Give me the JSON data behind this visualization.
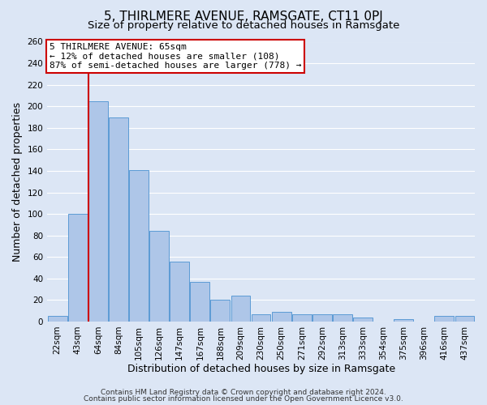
{
  "title": "5, THIRLMERE AVENUE, RAMSGATE, CT11 0PJ",
  "subtitle": "Size of property relative to detached houses in Ramsgate",
  "xlabel": "Distribution of detached houses by size in Ramsgate",
  "ylabel": "Number of detached properties",
  "bar_labels": [
    "22sqm",
    "43sqm",
    "64sqm",
    "84sqm",
    "105sqm",
    "126sqm",
    "147sqm",
    "167sqm",
    "188sqm",
    "209sqm",
    "230sqm",
    "250sqm",
    "271sqm",
    "292sqm",
    "313sqm",
    "333sqm",
    "354sqm",
    "375sqm",
    "396sqm",
    "416sqm",
    "437sqm"
  ],
  "bar_values": [
    5,
    100,
    205,
    190,
    141,
    84,
    56,
    37,
    20,
    24,
    7,
    9,
    7,
    7,
    7,
    4,
    0,
    2,
    0,
    5,
    5
  ],
  "bar_color": "#aec6e8",
  "bar_edge_color": "#5b9bd5",
  "vline_index": 2,
  "vline_color": "#cc0000",
  "ylim": [
    0,
    260
  ],
  "yticks": [
    0,
    20,
    40,
    60,
    80,
    100,
    120,
    140,
    160,
    180,
    200,
    220,
    240,
    260
  ],
  "annotation_title": "5 THIRLMERE AVENUE: 65sqm",
  "annotation_line1": "← 12% of detached houses are smaller (108)",
  "annotation_line2": "87% of semi-detached houses are larger (778) →",
  "annotation_box_color": "#ffffff",
  "annotation_box_edge": "#cc0000",
  "footer1": "Contains HM Land Registry data © Crown copyright and database right 2024.",
  "footer2": "Contains public sector information licensed under the Open Government Licence v3.0.",
  "background_color": "#dce6f5",
  "grid_color": "#ffffff",
  "title_fontsize": 11,
  "subtitle_fontsize": 9.5,
  "axis_label_fontsize": 9,
  "tick_fontsize": 7.5,
  "footer_fontsize": 6.5,
  "annotation_fontsize": 8
}
